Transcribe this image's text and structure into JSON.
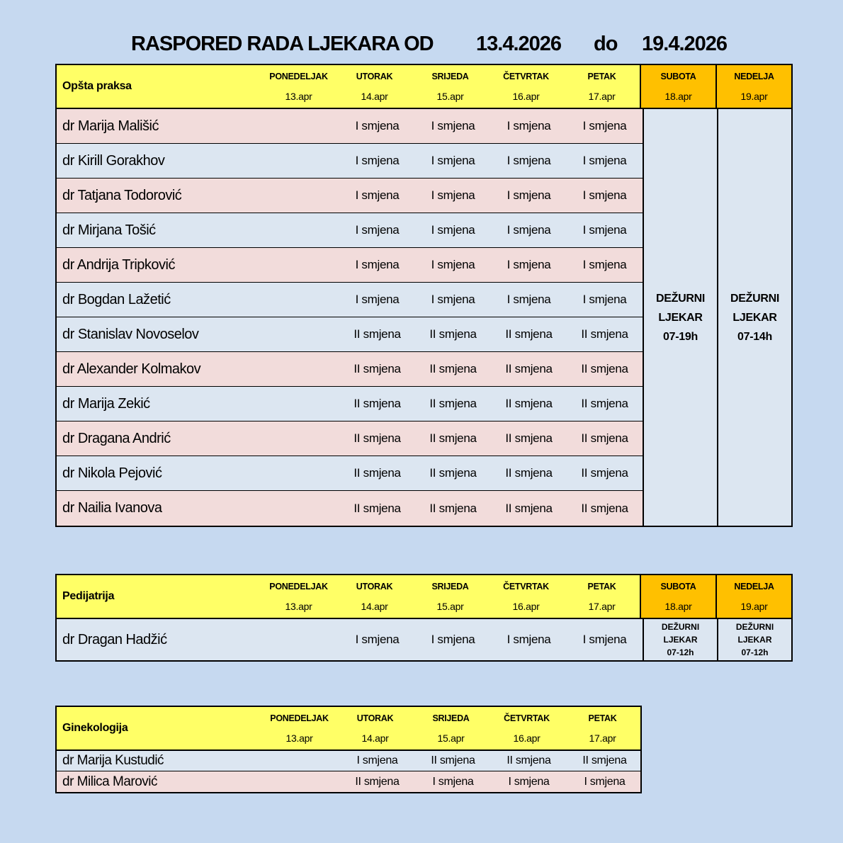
{
  "title": {
    "label": "RASPORED RADA LJEKARA OD",
    "date_from": "13.4.2026",
    "separator": "do",
    "date_to": "19.4.2026"
  },
  "colors": {
    "page_bg": "#c6d9f0",
    "header_yellow": "#ffff66",
    "header_orange": "#ffc000",
    "row_pink": "#f2dcdb",
    "row_blue": "#dce6f1",
    "weekend_bg": "#dce6f1",
    "border": "#000000"
  },
  "day_headers": {
    "weekdays": [
      {
        "name": "PONEDELJAK",
        "date": "13.apr"
      },
      {
        "name": "UTORAK",
        "date": "14.apr"
      },
      {
        "name": "SRIJEDA",
        "date": "15.apr"
      },
      {
        "name": "ČETVRTAK",
        "date": "16.apr"
      },
      {
        "name": "PETAK",
        "date": "17.apr"
      }
    ],
    "weekend": [
      {
        "name": "SUBOTA",
        "date": "18.apr"
      },
      {
        "name": "NEDELJA",
        "date": "19.apr"
      }
    ]
  },
  "tables": [
    {
      "section": "Opšta praksa",
      "has_weekend": true,
      "weekend_duty": [
        {
          "lines": [
            "DEŽURNI",
            "LJEKAR",
            "07-19h"
          ]
        },
        {
          "lines": [
            "DEŽURNI",
            "LJEKAR",
            "07-14h"
          ]
        }
      ],
      "rows": [
        {
          "name": "dr Marija Mališić",
          "color": "pink",
          "shifts": [
            "",
            "I smjena",
            "I smjena",
            "I smjena",
            "I smjena"
          ]
        },
        {
          "name": "dr Kirill Gorakhov",
          "color": "blue",
          "shifts": [
            "",
            "I smjena",
            "I smjena",
            "I smjena",
            "I smjena"
          ]
        },
        {
          "name": "dr Tatjana Todorović",
          "color": "pink",
          "shifts": [
            "",
            "I smjena",
            "I smjena",
            "I smjena",
            "I smjena"
          ]
        },
        {
          "name": "dr Mirjana Tošić",
          "color": "blue",
          "shifts": [
            "",
            "I smjena",
            "I smjena",
            "I smjena",
            "I smjena"
          ]
        },
        {
          "name": "dr Andrija Tripković",
          "color": "pink",
          "shifts": [
            "",
            "I smjena",
            "I smjena",
            "I smjena",
            "I smjena"
          ]
        },
        {
          "name": "dr Bogdan Lažetić",
          "color": "blue",
          "shifts": [
            "",
            "I smjena",
            "I smjena",
            "I smjena",
            "I smjena"
          ]
        },
        {
          "name": "dr Stanislav Novoselov",
          "color": "blue",
          "shifts": [
            "",
            "II smjena",
            "II smjena",
            "II smjena",
            "II smjena"
          ]
        },
        {
          "name": "dr Alexander Kolmakov",
          "color": "pink",
          "shifts": [
            "",
            "II smjena",
            "II smjena",
            "II smjena",
            "II smjena"
          ]
        },
        {
          "name": "dr Marija Zekić",
          "color": "blue",
          "shifts": [
            "",
            "II smjena",
            "II smjena",
            "II smjena",
            "II smjena"
          ]
        },
        {
          "name": "dr Dragana Andrić",
          "color": "pink",
          "shifts": [
            "",
            "II smjena",
            "II smjena",
            "II smjena",
            "II smjena"
          ]
        },
        {
          "name": "dr Nikola Pejović",
          "color": "blue",
          "shifts": [
            "",
            "II smjena",
            "II smjena",
            "II smjena",
            "II smjena"
          ]
        },
        {
          "name": "dr Nailia Ivanova",
          "color": "pink",
          "shifts": [
            "",
            "II smjena",
            "II smjena",
            "II smjena",
            "II smjena"
          ]
        }
      ]
    },
    {
      "section": "Pedijatrija",
      "has_weekend": true,
      "rows": [
        {
          "name": "dr Dragan Hadžić",
          "color": "blue",
          "shifts": [
            "",
            "I smjena",
            "I smjena",
            "I smjena",
            "I smjena"
          ],
          "weekend": [
            {
              "lines": [
                "DEŽURNI",
                "LJEKAR",
                "07-12h"
              ]
            },
            {
              "lines": [
                "DEŽURNI",
                "LJEKAR",
                "07-12h"
              ]
            }
          ]
        }
      ]
    },
    {
      "section": "Ginekologija",
      "has_weekend": false,
      "rows": [
        {
          "name": "dr Marija Kustudić",
          "color": "blue",
          "shifts": [
            "",
            "I smjena",
            "II smjena",
            "II smjena",
            "II smjena"
          ]
        },
        {
          "name": "dr Milica Marović",
          "color": "pink",
          "shifts": [
            "",
            "II smjena",
            "I smjena",
            "I smjena",
            "I smjena"
          ]
        }
      ]
    }
  ]
}
